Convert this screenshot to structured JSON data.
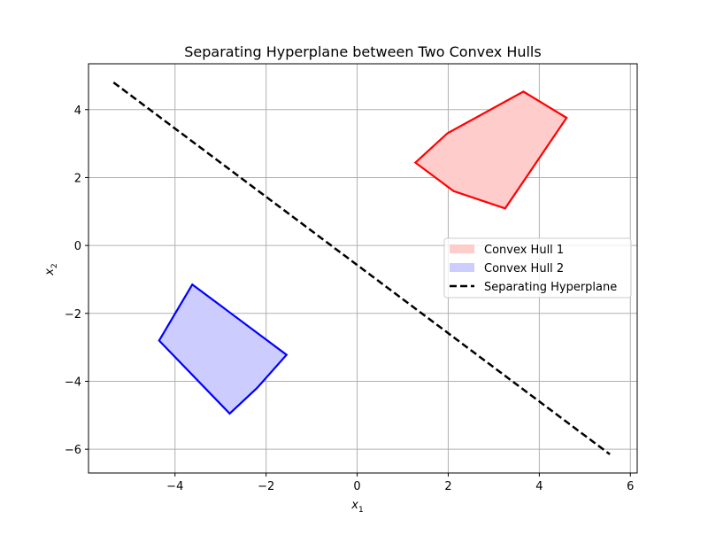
{
  "chart_data": {
    "type": "area",
    "title": "Separating Hyperplane between Two Convex Hulls",
    "xlabel": "x",
    "xlabel_sub": "1",
    "ylabel": "x",
    "ylabel_sub": "2",
    "xlim": [
      -5.9,
      6.15
    ],
    "ylim": [
      -6.7,
      5.35
    ],
    "xticks": [
      -4,
      -2,
      0,
      2,
      4,
      6
    ],
    "yticks": [
      -6,
      -4,
      -2,
      0,
      2,
      4
    ],
    "grid": true,
    "legend_position": "center-right",
    "series": [
      {
        "name": "Convex Hull 1",
        "kind": "polygon",
        "edge_color": "#ff0000",
        "fill_color": "#ffcccc",
        "points": [
          [
            1.28,
            2.44
          ],
          [
            1.98,
            3.3
          ],
          [
            3.65,
            4.53
          ],
          [
            4.6,
            3.76
          ],
          [
            3.25,
            1.09
          ],
          [
            2.12,
            1.6
          ]
        ]
      },
      {
        "name": "Convex Hull 2",
        "kind": "polygon",
        "edge_color": "#0000ff",
        "fill_color": "#ccccff",
        "points": [
          [
            -3.62,
            -1.15
          ],
          [
            -4.35,
            -2.8
          ],
          [
            -2.8,
            -4.95
          ],
          [
            -2.2,
            -4.2
          ],
          [
            -1.55,
            -3.22
          ]
        ]
      },
      {
        "name": "Separating Hyperplane",
        "kind": "line",
        "style": "dashed",
        "color": "#000000",
        "points": [
          [
            -5.35,
            4.8
          ],
          [
            5.55,
            -6.15
          ]
        ]
      }
    ]
  }
}
